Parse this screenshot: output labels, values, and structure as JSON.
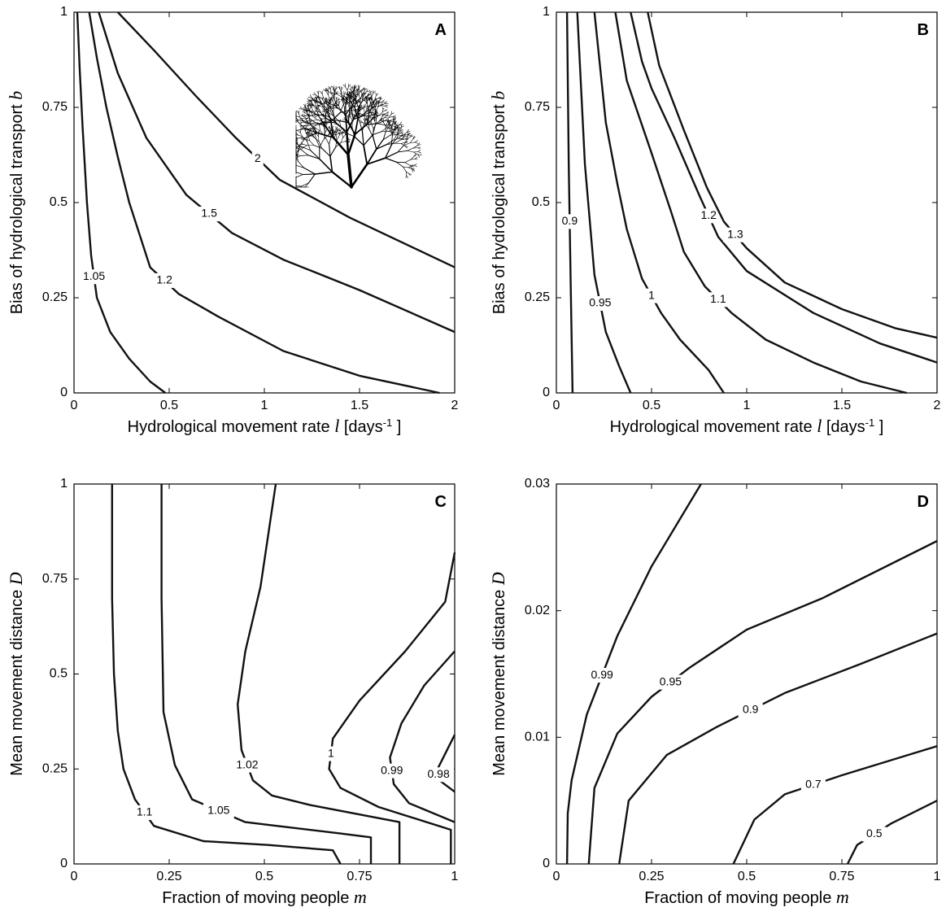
{
  "chart_data": [
    {
      "type": "contour",
      "panel": "A",
      "xlabel": [
        {
          "text": "Hydrological movement rate "
        },
        {
          "text": "l",
          "style": "italic"
        },
        {
          "text": " [days"
        },
        {
          "text": "-1",
          "style": "sup"
        },
        {
          "text": " ]"
        }
      ],
      "ylabel": [
        {
          "text": "Bias of hydrological transport "
        },
        {
          "text": "b",
          "style": "italic"
        }
      ],
      "xlim": [
        0,
        2
      ],
      "ylim": [
        0,
        1
      ],
      "xticks": [
        0,
        0.5,
        1,
        1.5,
        2
      ],
      "yticks": [
        0,
        0.25,
        0.5,
        0.75,
        1
      ],
      "color": "#111111",
      "series": [
        {
          "level": 1.05,
          "x": [
            0.017,
            0.03,
            0.045,
            0.068,
            0.09,
            0.12,
            0.19,
            0.29,
            0.4,
            0.48
          ],
          "values": [
            1,
            0.85,
            0.7,
            0.5,
            0.36,
            0.25,
            0.16,
            0.09,
            0.03,
            0
          ]
        },
        {
          "level": 1.2,
          "x": [
            0.08,
            0.12,
            0.17,
            0.23,
            0.29,
            0.4,
            0.55,
            0.76,
            1.1,
            1.5,
            1.92
          ],
          "values": [
            1,
            0.88,
            0.75,
            0.62,
            0.5,
            0.33,
            0.26,
            0.2,
            0.11,
            0.045,
            0
          ]
        },
        {
          "level": 1.5,
          "x": [
            0.13,
            0.23,
            0.38,
            0.59,
            0.83,
            1.1,
            1.5,
            2
          ],
          "values": [
            1,
            0.84,
            0.67,
            0.52,
            0.42,
            0.35,
            0.27,
            0.16
          ]
        },
        {
          "level": 2,
          "x": [
            0.23,
            0.42,
            0.64,
            0.85,
            1.08,
            1.45,
            2
          ],
          "values": [
            1,
            0.9,
            0.78,
            0.67,
            0.56,
            0.46,
            0.33
          ]
        }
      ]
    },
    {
      "type": "contour",
      "panel": "B",
      "xlabel": [
        {
          "text": "Hydrological movement rate "
        },
        {
          "text": "l",
          "style": "italic"
        },
        {
          "text": " [days"
        },
        {
          "text": "-1",
          "style": "sup"
        },
        {
          "text": " ]"
        }
      ],
      "ylabel": [
        {
          "text": "Bias of hydrological transport "
        },
        {
          "text": "b",
          "style": "italic"
        }
      ],
      "xlim": [
        0,
        2
      ],
      "ylim": [
        0,
        1
      ],
      "xticks": [
        0,
        0.5,
        1,
        1.5,
        2
      ],
      "yticks": [
        0,
        0.25,
        0.5,
        0.75,
        1
      ],
      "color": "#111111",
      "series": [
        {
          "level": 0.9,
          "x": [
            0.056,
            0.065,
            0.075,
            0.085
          ],
          "values": [
            1,
            0.6,
            0.3,
            0
          ]
        },
        {
          "level": 0.95,
          "x": [
            0.11,
            0.13,
            0.15,
            0.2,
            0.26,
            0.33,
            0.39
          ],
          "values": [
            1,
            0.8,
            0.6,
            0.31,
            0.16,
            0.07,
            0
          ]
        },
        {
          "level": 1,
          "x": [
            0.2,
            0.26,
            0.32,
            0.37,
            0.45,
            0.55,
            0.65,
            0.8,
            0.88
          ],
          "values": [
            1,
            0.71,
            0.55,
            0.43,
            0.3,
            0.21,
            0.14,
            0.06,
            0
          ]
        },
        {
          "level": 1.1,
          "x": [
            0.31,
            0.37,
            0.5,
            0.6,
            0.67,
            0.78,
            0.92,
            1.1,
            1.35,
            1.6,
            1.84
          ],
          "values": [
            1,
            0.82,
            0.63,
            0.48,
            0.37,
            0.28,
            0.21,
            0.14,
            0.08,
            0.03,
            0
          ]
        },
        {
          "level": 1.2,
          "x": [
            0.39,
            0.45,
            0.5,
            0.62,
            0.75,
            0.85,
            1.0,
            1.35,
            1.7,
            2
          ],
          "values": [
            1,
            0.87,
            0.8,
            0.67,
            0.52,
            0.41,
            0.32,
            0.21,
            0.13,
            0.08
          ]
        },
        {
          "level": 1.3,
          "x": [
            0.48,
            0.54,
            0.67,
            0.79,
            0.88,
            1.0,
            1.2,
            1.5,
            1.78,
            2
          ],
          "values": [
            1,
            0.86,
            0.69,
            0.54,
            0.45,
            0.38,
            0.29,
            0.22,
            0.17,
            0.145
          ]
        }
      ]
    },
    {
      "type": "contour",
      "panel": "C",
      "xlabel": [
        {
          "text": "Fraction of moving people "
        },
        {
          "text": "m",
          "style": "italic"
        }
      ],
      "ylabel": [
        {
          "text": "Mean movement distance "
        },
        {
          "text": "D",
          "style": "italic"
        }
      ],
      "xlim": [
        0,
        1
      ],
      "ylim": [
        0,
        1
      ],
      "xticks": [
        0,
        0.25,
        0.5,
        0.75,
        1
      ],
      "yticks": [
        0,
        0.25,
        0.5,
        0.75,
        1
      ],
      "color": "#111111",
      "series": [
        {
          "level": 1.1,
          "x": [
            0.1,
            0.1,
            0.105,
            0.115,
            0.13,
            0.16,
            0.21,
            0.34,
            0.51,
            0.68,
            0.7
          ],
          "values": [
            1,
            0.7,
            0.5,
            0.35,
            0.25,
            0.17,
            0.1,
            0.06,
            0.05,
            0.036,
            0
          ]
        },
        {
          "level": 1.05,
          "x": [
            0.23,
            0.23,
            0.235,
            0.265,
            0.31,
            0.45,
            0.7,
            0.78,
            0.78
          ],
          "values": [
            1,
            0.7,
            0.4,
            0.26,
            0.17,
            0.11,
            0.08,
            0.07,
            0
          ]
        },
        {
          "level": 1.02,
          "x": [
            0.53,
            0.49,
            0.45,
            0.43,
            0.44,
            0.47,
            0.52,
            0.62,
            0.855,
            0.855
          ],
          "values": [
            1,
            0.73,
            0.56,
            0.42,
            0.3,
            0.22,
            0.18,
            0.155,
            0.11,
            0
          ]
        },
        {
          "level": 1,
          "x": [
            1,
            0.975,
            0.87,
            0.75,
            0.68,
            0.67,
            0.7,
            0.8,
            0.99,
            0.99
          ],
          "values": [
            0.82,
            0.69,
            0.56,
            0.43,
            0.33,
            0.25,
            0.2,
            0.15,
            0.09,
            0
          ]
        },
        {
          "level": 0.99,
          "x": [
            1,
            0.92,
            0.86,
            0.83,
            0.84,
            0.88,
            1
          ],
          "values": [
            0.56,
            0.47,
            0.37,
            0.28,
            0.21,
            0.16,
            0.11
          ]
        },
        {
          "level": 0.98,
          "x": [
            1,
            0.97,
            0.955,
            0.96,
            1
          ],
          "values": [
            0.34,
            0.28,
            0.25,
            0.22,
            0.19
          ]
        }
      ]
    },
    {
      "type": "contour",
      "panel": "D",
      "xlabel": [
        {
          "text": "Fraction of moving people "
        },
        {
          "text": "m",
          "style": "italic"
        }
      ],
      "ylabel": [
        {
          "text": "Mean movement distance "
        },
        {
          "text": "D",
          "style": "italic"
        }
      ],
      "xlim": [
        0,
        1
      ],
      "ylim": [
        0,
        0.03
      ],
      "xticks": [
        0,
        0.25,
        0.5,
        0.75,
        1
      ],
      "yticks": [
        0,
        0.01,
        0.02,
        0.03
      ],
      "color": "#111111",
      "series": [
        {
          "level": 0.99,
          "x": [
            0.028,
            0.03,
            0.04,
            0.08,
            0.16,
            0.25,
            0.38
          ],
          "values": [
            0,
            0.004,
            0.0066,
            0.0118,
            0.018,
            0.0235,
            0.03
          ]
        },
        {
          "level": 0.95,
          "x": [
            0.085,
            0.1,
            0.16,
            0.25,
            0.35,
            0.5,
            0.7,
            1
          ],
          "values": [
            0,
            0.006,
            0.0103,
            0.0132,
            0.0155,
            0.0185,
            0.021,
            0.0255
          ]
        },
        {
          "level": 0.9,
          "x": [
            0.165,
            0.19,
            0.29,
            0.42,
            0.6,
            0.8,
            1
          ],
          "values": [
            0,
            0.005,
            0.0086,
            0.0108,
            0.0135,
            0.0158,
            0.0182
          ]
        },
        {
          "level": 0.7,
          "x": [
            0.465,
            0.52,
            0.6,
            0.75,
            0.88,
            1
          ],
          "values": [
            0,
            0.0035,
            0.0055,
            0.007,
            0.0082,
            0.0093
          ]
        },
        {
          "level": 0.5,
          "x": [
            0.765,
            0.79,
            0.88,
            1
          ],
          "values": [
            0,
            0.0015,
            0.0032,
            0.005
          ]
        }
      ]
    }
  ]
}
